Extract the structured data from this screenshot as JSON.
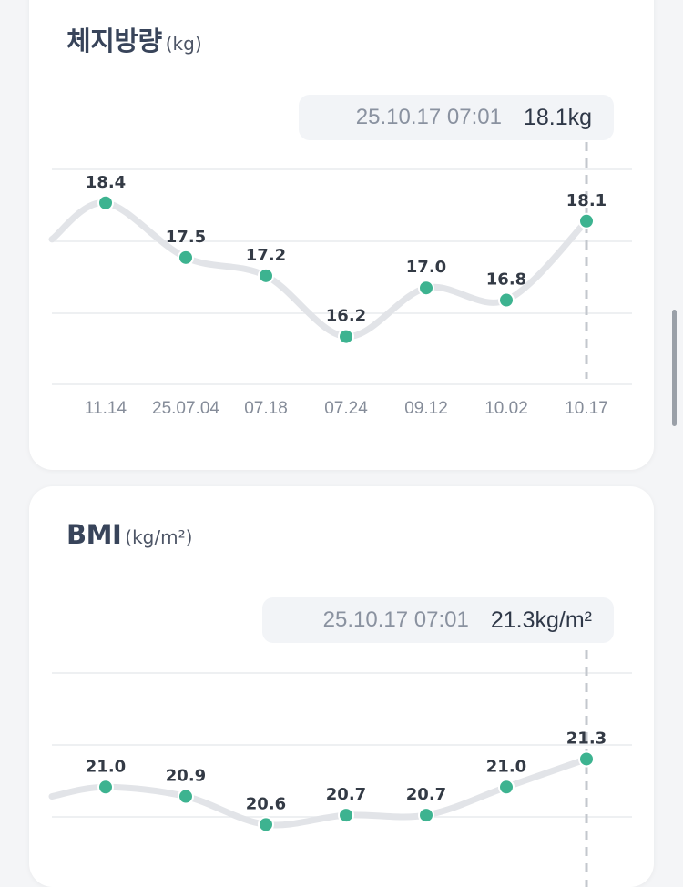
{
  "body_fat": {
    "title": "체지방량",
    "unit": "(kg)",
    "tooltip": {
      "time": "25.10.17 07:01",
      "value": "18.1kg"
    },
    "chart_data": {
      "type": "line",
      "categories": [
        "11.14",
        "25.07.04",
        "07.18",
        "07.24",
        "09.12",
        "10.02",
        "10.17"
      ],
      "values": [
        18.4,
        17.5,
        17.2,
        16.2,
        17.0,
        16.8,
        18.1
      ],
      "labels": [
        "18.4",
        "17.5",
        "17.2",
        "16.2",
        "17.0",
        "16.8",
        "18.1"
      ],
      "leading_value": 17.8,
      "selected_index": 6,
      "ylim": [
        15.4,
        19.4
      ],
      "grid": true
    }
  },
  "bmi": {
    "title": "BMI",
    "unit": "(kg/m²)",
    "tooltip": {
      "time": "25.10.17 07:01",
      "value": "21.3kg/m²"
    },
    "chart_data": {
      "type": "line",
      "categories": [
        "",
        "",
        "",
        "",
        "",
        "",
        ""
      ],
      "values": [
        21.0,
        20.9,
        20.6,
        20.7,
        20.7,
        21.0,
        21.3
      ],
      "labels": [
        "21.0",
        "20.9",
        "20.6",
        "20.7",
        "20.7",
        "21.0",
        "21.3"
      ],
      "leading_value": 20.9,
      "selected_index": 6,
      "ylim": [
        20.0,
        22.2
      ],
      "grid": true
    }
  },
  "colors": {
    "point": "#3db390",
    "line": "#e2e4e8",
    "grid": "#e9ebee",
    "selection": "#c3c7cd"
  }
}
